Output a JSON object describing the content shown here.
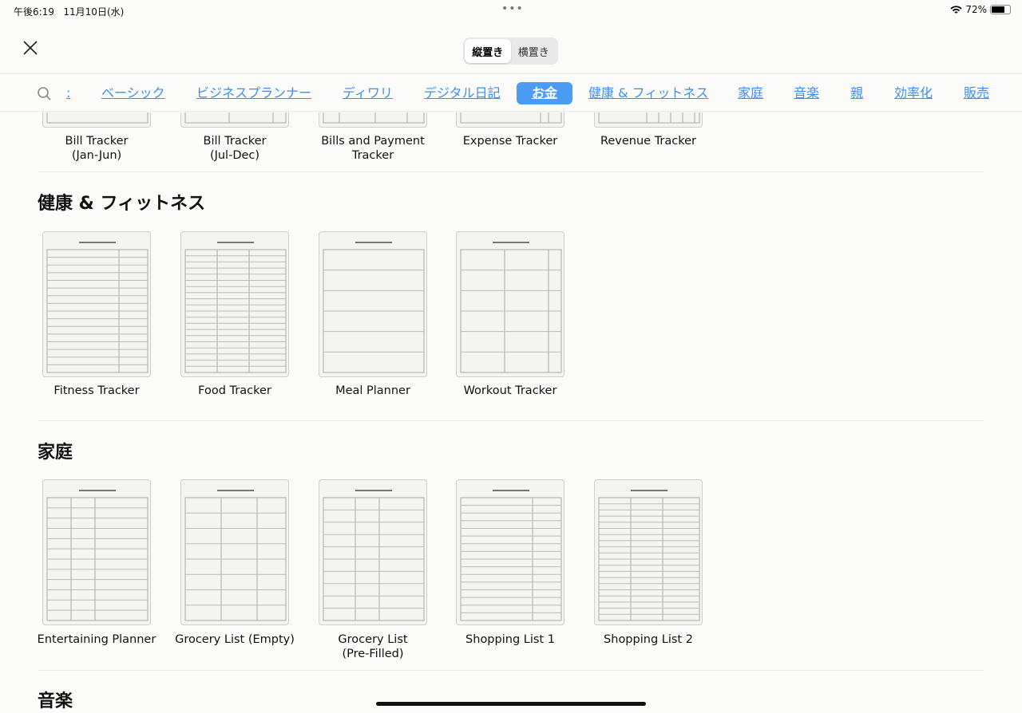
{
  "status_bar": {
    "time": "午後6:19",
    "date": "11月10日(水)",
    "battery": "72%",
    "battery_level": 0.72
  },
  "orientation": {
    "options": [
      "縦置き",
      "横置き"
    ],
    "selected": "縦置き"
  },
  "categories": {
    "more": ":",
    "items": [
      "ベーシック",
      "ビジネスプランナー",
      "ディワリ",
      "デジタル日記",
      "お金",
      "健康 & フィットネス",
      "家庭",
      "音楽",
      "親",
      "効率化",
      "販売"
    ],
    "active": "お金",
    "accent": "#4a9cf5"
  },
  "sections": [
    {
      "title": "",
      "templates": [
        "Bill Tracker\n(Jan-Jun)",
        "Bill Tracker\n(Jul-Dec)",
        "Bills and Payment\nTracker",
        "Expense Tracker",
        "Revenue Tracker"
      ]
    },
    {
      "title": "健康 & フィットネス",
      "templates": [
        "Fitness Tracker",
        "Food Tracker",
        "Meal Planner",
        "Workout Tracker"
      ]
    },
    {
      "title": "家庭",
      "templates": [
        "Entertaining Planner",
        "Grocery List (Empty)",
        "Grocery List\n(Pre-Filled)",
        "Shopping List 1",
        "Shopping List 2"
      ]
    },
    {
      "title": "音楽",
      "templates": []
    }
  ]
}
